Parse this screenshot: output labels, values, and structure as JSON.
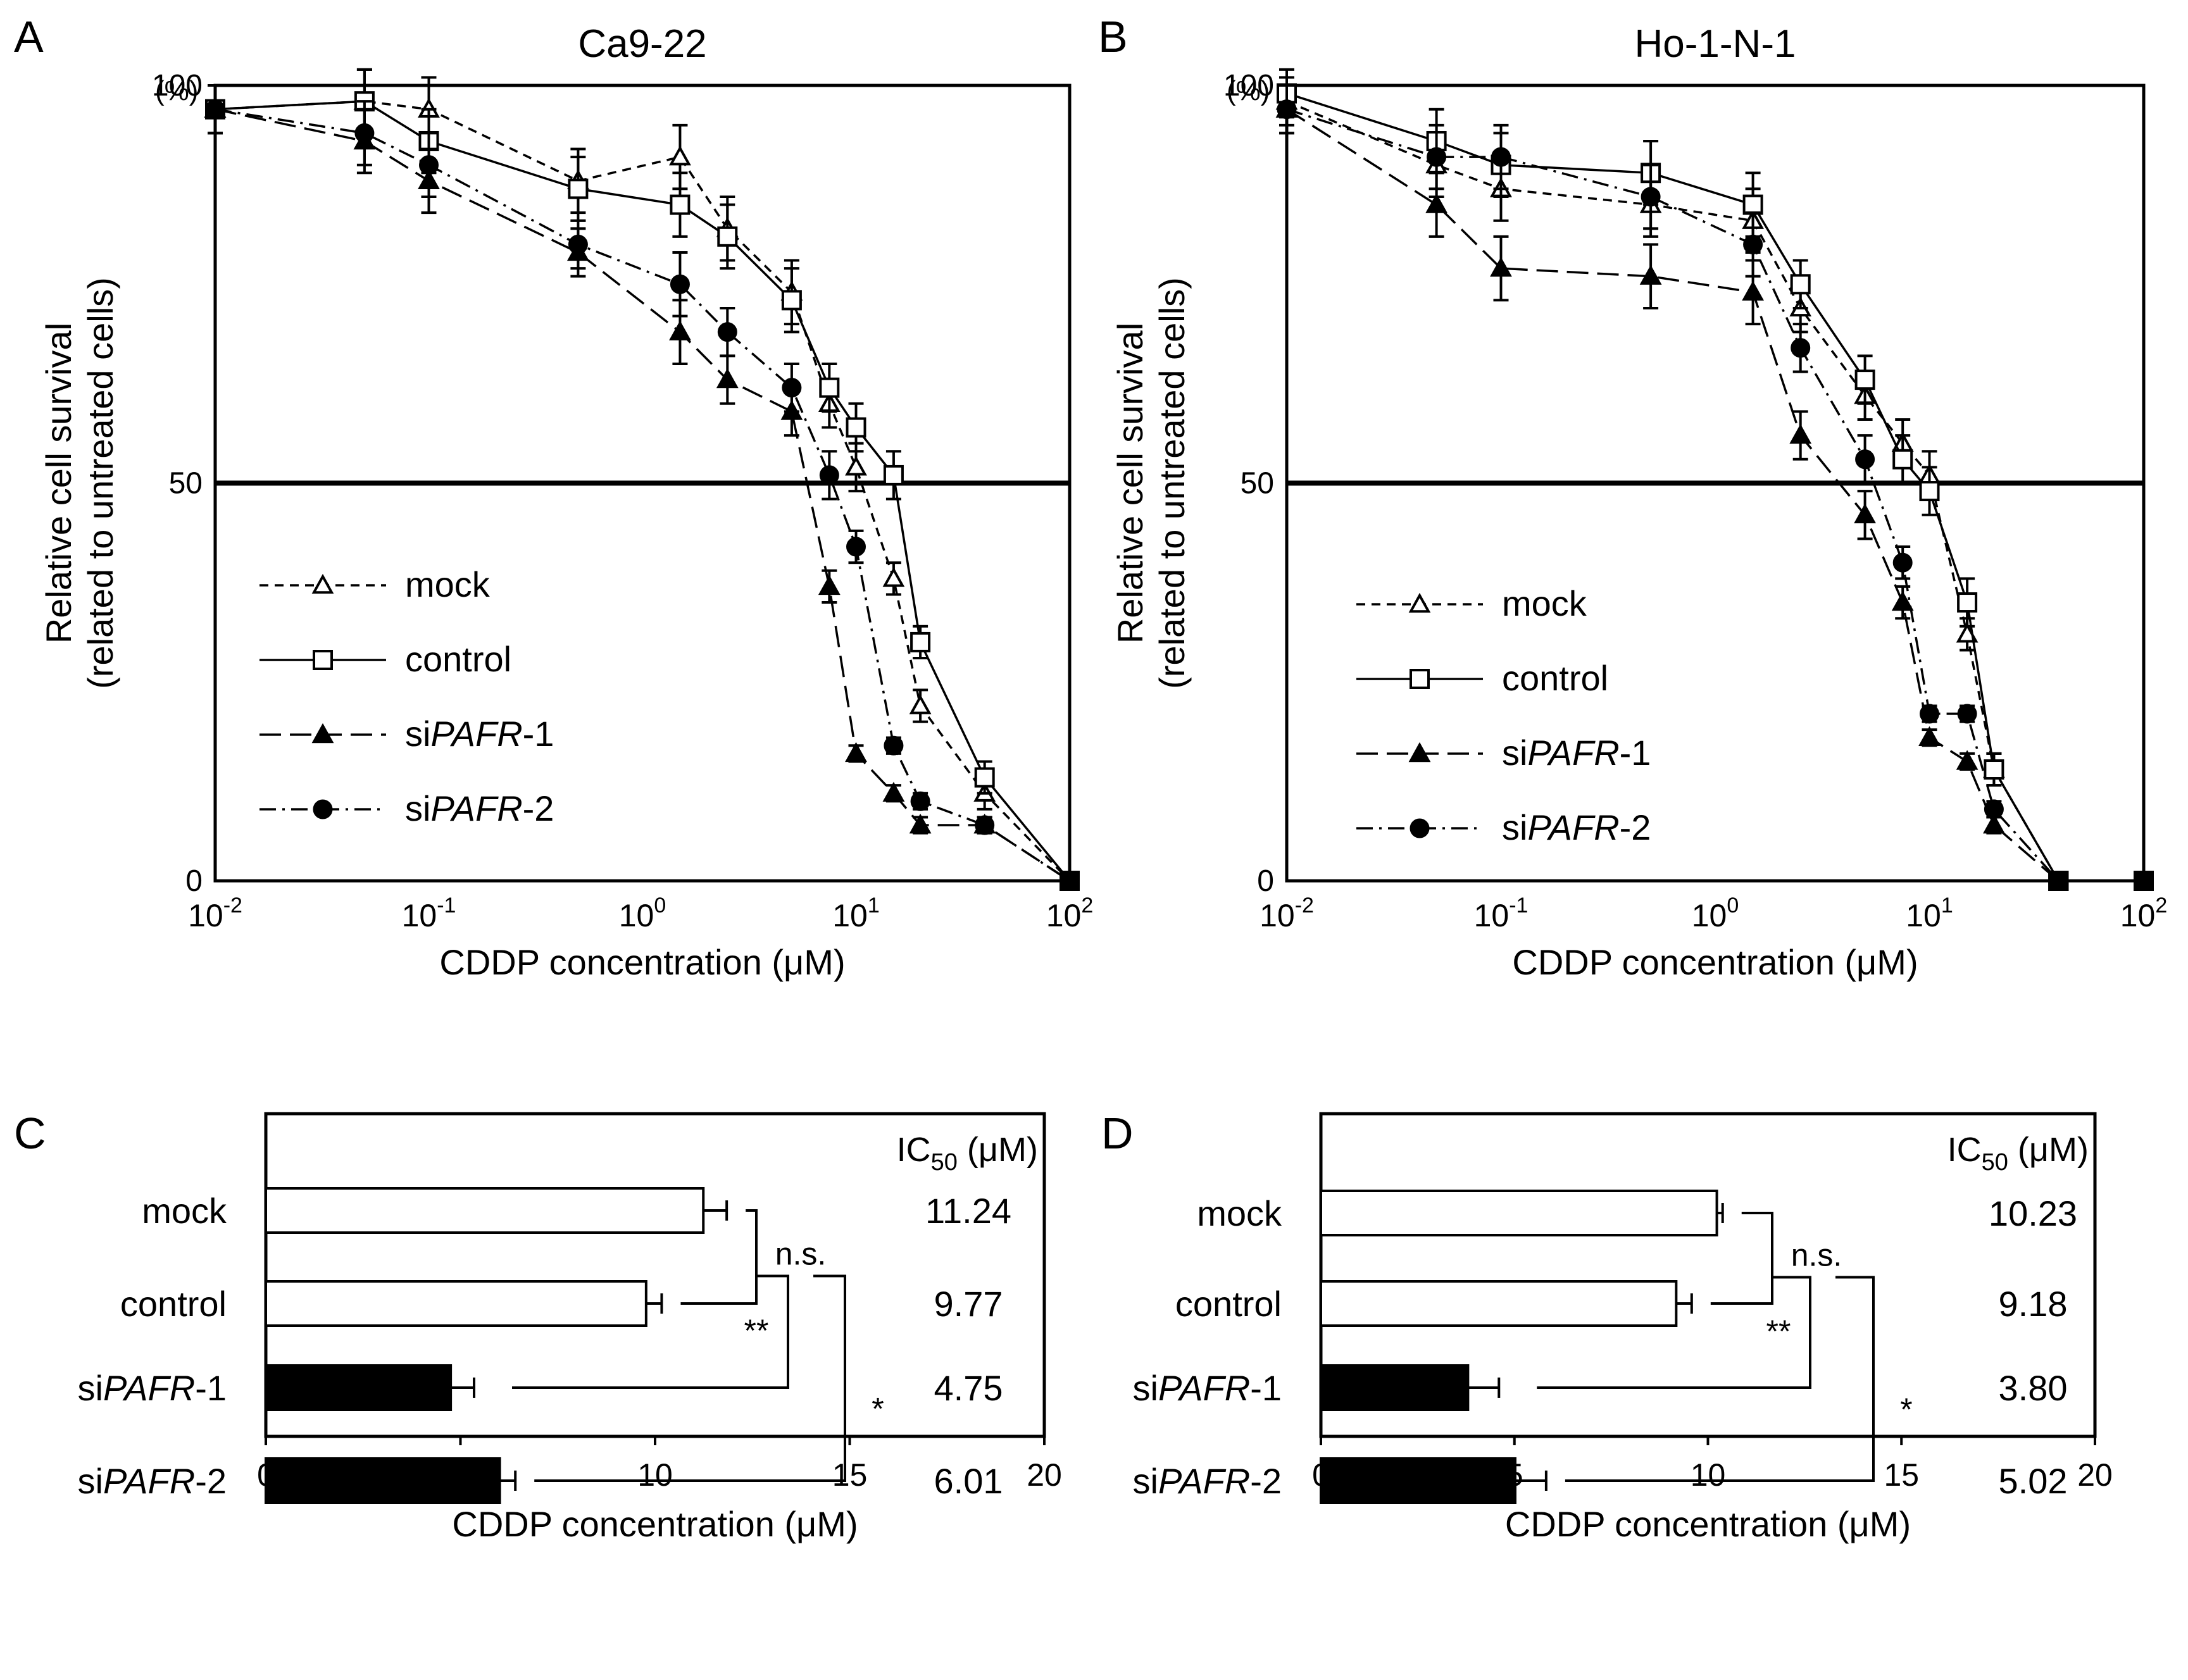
{
  "figure": {
    "panel_letters": [
      "A",
      "B",
      "C",
      "D"
    ]
  },
  "chart_data": [
    {
      "panel": "A",
      "type": "line",
      "title": "Ca9-22",
      "xlabel": "CDDP concentration (μM)",
      "ylabel_line1": "Relative cell survival",
      "ylabel_line2": "(related to untreated cells)",
      "y_unit": "(%)",
      "xscale": "log",
      "xlim": [
        0.01,
        100
      ],
      "ylim": [
        0,
        100
      ],
      "x_ticks": [
        {
          "base": "10",
          "exp": "-2"
        },
        {
          "base": "10",
          "exp": "-1"
        },
        {
          "base": "10",
          "exp": "0"
        },
        {
          "base": "10",
          "exp": "1"
        },
        {
          "base": "10",
          "exp": "2"
        }
      ],
      "y_ticks": [
        "0",
        "50",
        "100"
      ],
      "reference_line_y": 50,
      "legend_position": "bottom-left",
      "series": [
        {
          "name": "mock",
          "name_prefix": "mock",
          "name_italic": "",
          "name_suffix": "",
          "marker": "triangle-open",
          "line": "dashed",
          "x": [
            0.01,
            0.05,
            0.1,
            0.5,
            1.5,
            2.5,
            5,
            7.5,
            10,
            15,
            20,
            40,
            100
          ],
          "y": [
            97,
            98,
            97,
            88,
            91,
            82,
            74,
            60,
            52,
            38,
            22,
            11,
            0
          ],
          "err": [
            3,
            4,
            4,
            4,
            4,
            4,
            4,
            3,
            3,
            2,
            2,
            2,
            0
          ]
        },
        {
          "name": "control",
          "name_prefix": "control",
          "name_italic": "",
          "name_suffix": "",
          "marker": "square-open",
          "line": "solid",
          "x": [
            0.01,
            0.05,
            0.1,
            0.5,
            1.5,
            2.5,
            5,
            7.5,
            10,
            15,
            20,
            40,
            100
          ],
          "y": [
            97,
            98,
            93,
            87,
            85,
            81,
            73,
            62,
            57,
            51,
            30,
            13,
            0
          ],
          "err": [
            3,
            4,
            4,
            4,
            4,
            4,
            4,
            3,
            3,
            3,
            2,
            2,
            0
          ]
        },
        {
          "name": "siPAFR-1",
          "name_prefix": "si",
          "name_italic": "PAFR",
          "name_suffix": "-1",
          "marker": "triangle-filled",
          "line": "longdash",
          "x": [
            0.01,
            0.05,
            0.1,
            0.5,
            1.5,
            2.5,
            5,
            7.5,
            10,
            15,
            20,
            40,
            100
          ],
          "y": [
            97,
            93,
            88,
            79,
            69,
            63,
            59,
            37,
            16,
            11,
            7,
            7,
            0
          ],
          "err": [
            3,
            4,
            4,
            3,
            4,
            3,
            3,
            2,
            1,
            1,
            1,
            1,
            0
          ]
        },
        {
          "name": "siPAFR-2",
          "name_prefix": "si",
          "name_italic": "PAFR",
          "name_suffix": "-2",
          "marker": "circle-filled",
          "line": "dashdot",
          "x": [
            0.01,
            0.05,
            0.1,
            0.5,
            1.5,
            2.5,
            5,
            7.5,
            10,
            15,
            20,
            40,
            100
          ],
          "y": [
            97,
            94,
            90,
            80,
            75,
            69,
            62,
            51,
            42,
            17,
            10,
            7,
            0
          ],
          "err": [
            3,
            4,
            4,
            3,
            4,
            3,
            3,
            3,
            2,
            1,
            1,
            1,
            0
          ]
        }
      ]
    },
    {
      "panel": "B",
      "type": "line",
      "title": "Ho-1-N-1",
      "xlabel": "CDDP concentration (μM)",
      "ylabel_line1": "Relative cell survival",
      "ylabel_line2": "(related to untreated cells)",
      "y_unit": "(%)",
      "xscale": "log",
      "xlim": [
        0.01,
        100
      ],
      "ylim": [
        0,
        100
      ],
      "x_ticks": [
        {
          "base": "10",
          "exp": "-2"
        },
        {
          "base": "10",
          "exp": "-1"
        },
        {
          "base": "10",
          "exp": "0"
        },
        {
          "base": "10",
          "exp": "1"
        },
        {
          "base": "10",
          "exp": "2"
        }
      ],
      "y_ticks": [
        "0",
        "50",
        "100"
      ],
      "reference_line_y": 50,
      "legend_position": "bottom-left",
      "series": [
        {
          "name": "mock",
          "name_prefix": "mock",
          "name_italic": "",
          "name_suffix": "",
          "marker": "triangle-open",
          "line": "dashed",
          "x": [
            0.01,
            0.05,
            0.1,
            0.5,
            1.5,
            2.5,
            5,
            7.5,
            10,
            15,
            20,
            40,
            100
          ],
          "y": [
            98,
            90,
            87,
            85,
            83,
            72,
            61,
            55,
            51,
            31,
            14,
            0,
            0
          ],
          "err": [
            3,
            4,
            4,
            4,
            4,
            3,
            3,
            3,
            3,
            2,
            2,
            0,
            0
          ]
        },
        {
          "name": "control",
          "name_prefix": "control",
          "name_italic": "",
          "name_suffix": "",
          "marker": "square-open",
          "line": "solid",
          "x": [
            0.01,
            0.05,
            0.1,
            0.5,
            1.5,
            2.5,
            5,
            7.5,
            10,
            15,
            20,
            40,
            100
          ],
          "y": [
            99,
            93,
            90,
            89,
            85,
            75,
            63,
            53,
            49,
            35,
            14,
            0,
            0
          ],
          "err": [
            3,
            4,
            4,
            4,
            4,
            3,
            3,
            3,
            3,
            3,
            2,
            0,
            0
          ]
        },
        {
          "name": "siPAFR-1",
          "name_prefix": "si",
          "name_italic": "PAFR",
          "name_suffix": "-1",
          "marker": "triangle-filled",
          "line": "longdash",
          "x": [
            0.01,
            0.05,
            0.1,
            0.5,
            1.5,
            2.5,
            5,
            7.5,
            10,
            15,
            20,
            40,
            100
          ],
          "y": [
            97,
            85,
            77,
            76,
            74,
            56,
            46,
            35,
            18,
            15,
            7,
            0,
            0
          ],
          "err": [
            3,
            4,
            4,
            4,
            4,
            3,
            3,
            2,
            1,
            1,
            1,
            0,
            0
          ]
        },
        {
          "name": "siPAFR-2",
          "name_prefix": "si",
          "name_italic": "PAFR",
          "name_suffix": "-2",
          "marker": "circle-filled",
          "line": "dashdot",
          "x": [
            0.01,
            0.05,
            0.1,
            0.5,
            1.5,
            2.5,
            5,
            7.5,
            10,
            15,
            20,
            40,
            100
          ],
          "y": [
            97,
            91,
            91,
            86,
            80,
            67,
            53,
            40,
            21,
            21,
            9,
            0,
            0
          ],
          "err": [
            3,
            4,
            4,
            4,
            4,
            3,
            3,
            2,
            1,
            1,
            1,
            0,
            0
          ]
        }
      ]
    },
    {
      "panel": "C",
      "type": "bar",
      "orientation": "horizontal",
      "xlabel": "CDDP concentration (μM)",
      "xlim": [
        0,
        20
      ],
      "x_ticks": [
        "0",
        "5",
        "10",
        "15",
        "20"
      ],
      "ic50_header": {
        "prefix": "IC",
        "sub": "50",
        "unit": " (μM)"
      },
      "categories": [
        {
          "prefix": "mock",
          "italic": "",
          "suffix": ""
        },
        {
          "prefix": "control",
          "italic": "",
          "suffix": ""
        },
        {
          "prefix": "si",
          "italic": "PAFR",
          "suffix": "-1"
        },
        {
          "prefix": "si",
          "italic": "PAFR",
          "suffix": "-2"
        }
      ],
      "values": [
        11.24,
        9.77,
        4.75,
        6.01
      ],
      "errors": [
        0.6,
        0.4,
        0.6,
        0.4
      ],
      "value_labels": [
        "11.24",
        "9.77",
        "4.75",
        "6.01"
      ],
      "bar_fill": [
        "white",
        "white",
        "black",
        "black"
      ],
      "significance": [
        {
          "a": 0,
          "b": 1,
          "label": "n.s."
        },
        {
          "a": 1,
          "b": 2,
          "label": "**"
        },
        {
          "a": 0,
          "b": 3,
          "label": "*"
        }
      ]
    },
    {
      "panel": "D",
      "type": "bar",
      "orientation": "horizontal",
      "xlabel": "CDDP concentration (μM)",
      "xlim": [
        0,
        20
      ],
      "x_ticks": [
        "0",
        "5",
        "10",
        "15",
        "20"
      ],
      "ic50_header": {
        "prefix": "IC",
        "sub": "50",
        "unit": " (μM)"
      },
      "categories": [
        {
          "prefix": "mock",
          "italic": "",
          "suffix": ""
        },
        {
          "prefix": "control",
          "italic": "",
          "suffix": ""
        },
        {
          "prefix": "si",
          "italic": "PAFR",
          "suffix": "-1"
        },
        {
          "prefix": "si",
          "italic": "PAFR",
          "suffix": "-2"
        }
      ],
      "values": [
        10.23,
        9.18,
        3.8,
        5.02
      ],
      "errors": [
        0.15,
        0.4,
        0.8,
        0.8
      ],
      "value_labels": [
        "10.23",
        "9.18",
        "3.80",
        "5.02"
      ],
      "bar_fill": [
        "white",
        "white",
        "black",
        "black"
      ],
      "significance": [
        {
          "a": 0,
          "b": 1,
          "label": "n.s."
        },
        {
          "a": 1,
          "b": 2,
          "label": "**"
        },
        {
          "a": 0,
          "b": 3,
          "label": "*"
        }
      ]
    }
  ]
}
